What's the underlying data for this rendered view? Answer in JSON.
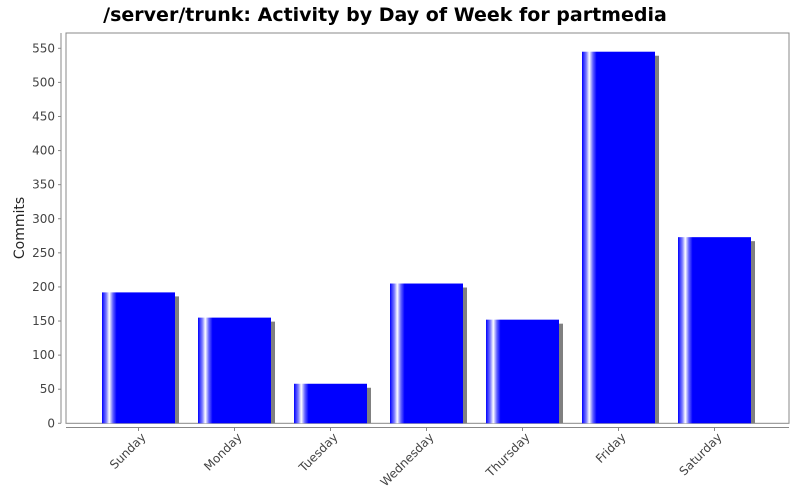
{
  "chart_data": {
    "type": "bar",
    "title": "/server/trunk: Activity by Day of Week for partmedia",
    "xlabel": "",
    "ylabel": "Commits",
    "categories": [
      "Sunday",
      "Monday",
      "Tuesday",
      "Wednesday",
      "Thursday",
      "Friday",
      "Saturday"
    ],
    "values": [
      192,
      155,
      58,
      205,
      152,
      545,
      273
    ],
    "ylim": [
      0,
      572
    ],
    "yticks": [
      0,
      50,
      100,
      150,
      200,
      250,
      300,
      350,
      400,
      450,
      500,
      550
    ],
    "grid": false,
    "legend": "none",
    "colors": {
      "bar": "#0000ff",
      "shadow": "#808080",
      "axis": "#888888"
    }
  }
}
